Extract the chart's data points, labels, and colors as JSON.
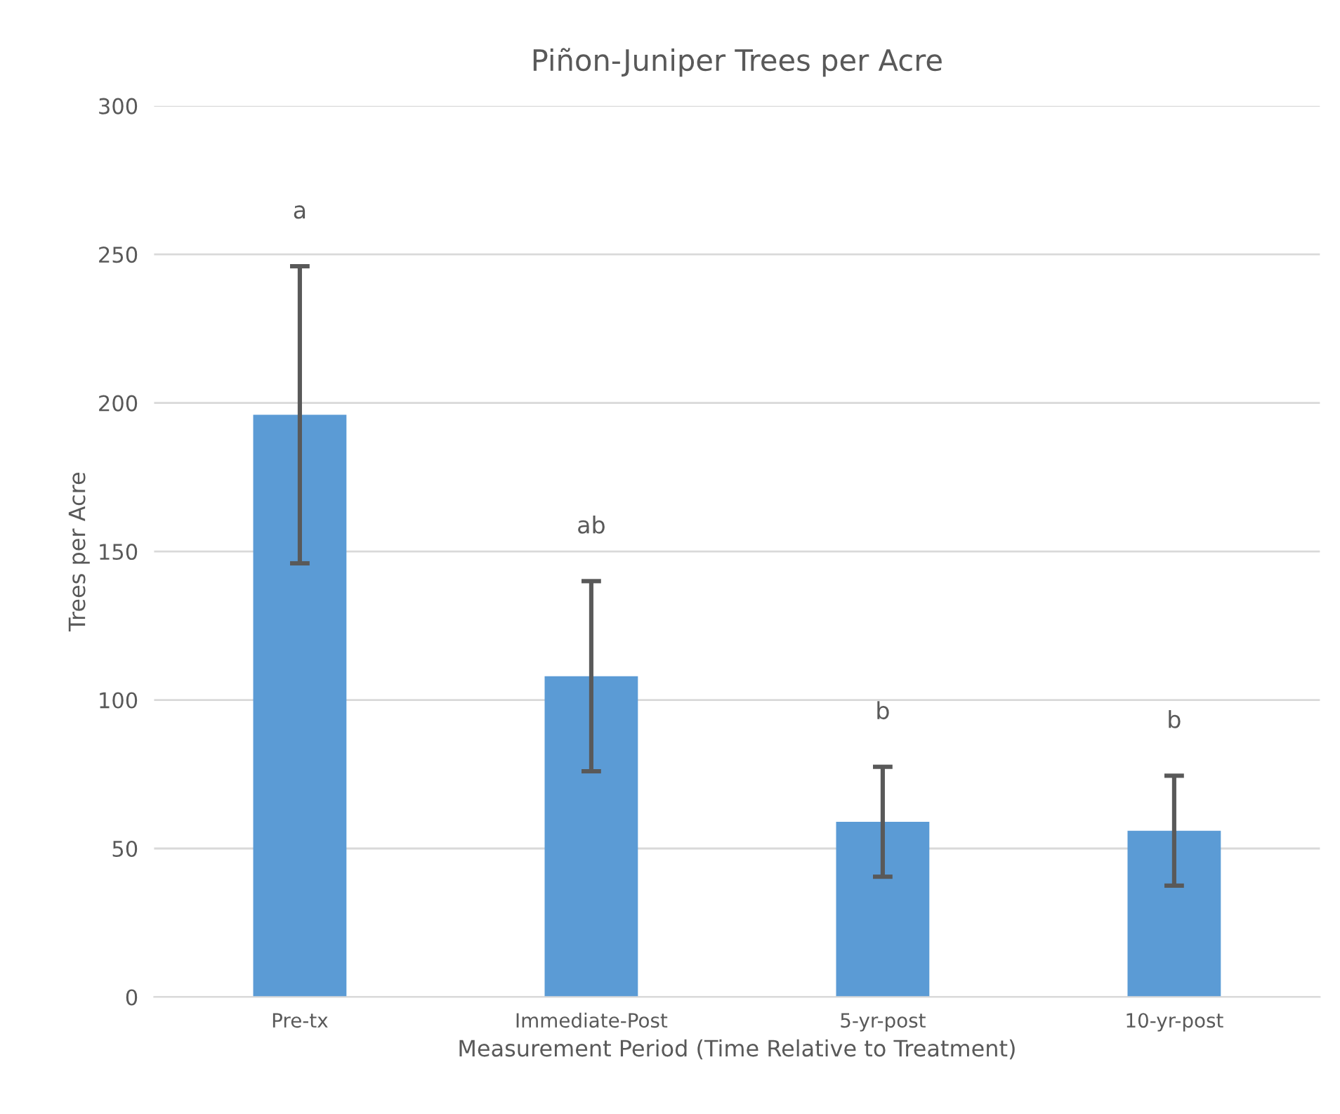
{
  "chart_data": {
    "type": "bar",
    "title": "Piñon-Juniper Trees per Acre",
    "xlabel": "Measurement Period (Time Relative to Treatment)",
    "ylabel": "Trees per Acre",
    "categories": [
      "Pre-tx",
      "Immediate-Post",
      "5-yr-post",
      "10-yr-post"
    ],
    "series": [
      {
        "color": "#5b9bd5",
        "values": [
          196,
          108,
          59,
          56
        ],
        "errors": [
          50,
          32,
          18.5,
          18.5
        ]
      }
    ],
    "ylim": [
      0,
      300
    ],
    "yticks": [
      0,
      50,
      100,
      150,
      200,
      250,
      300
    ],
    "grid": "y",
    "legend": false,
    "annotations": [
      "a",
      "ab",
      "b",
      "b"
    ]
  }
}
